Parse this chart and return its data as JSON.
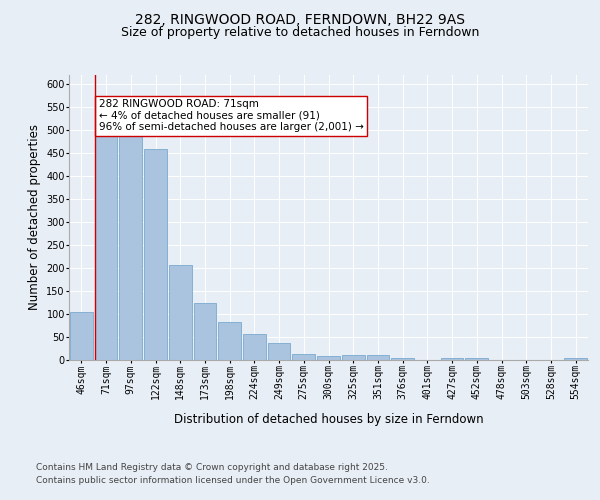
{
  "title_line1": "282, RINGWOOD ROAD, FERNDOWN, BH22 9AS",
  "title_line2": "Size of property relative to detached houses in Ferndown",
  "xlabel": "Distribution of detached houses by size in Ferndown",
  "ylabel": "Number of detached properties",
  "categories": [
    "46sqm",
    "71sqm",
    "97sqm",
    "122sqm",
    "148sqm",
    "173sqm",
    "198sqm",
    "224sqm",
    "249sqm",
    "275sqm",
    "300sqm",
    "325sqm",
    "351sqm",
    "376sqm",
    "401sqm",
    "427sqm",
    "452sqm",
    "478sqm",
    "503sqm",
    "528sqm",
    "554sqm"
  ],
  "values": [
    105,
    493,
    493,
    460,
    207,
    123,
    82,
    57,
    38,
    13,
    8,
    11,
    10,
    4,
    0,
    5,
    5,
    0,
    0,
    0,
    5
  ],
  "bar_color": "#aac4e0",
  "bar_edge_color": "#7aaace",
  "highlight_index": 1,
  "highlight_line_color": "#cc0000",
  "annotation_text": "282 RINGWOOD ROAD: 71sqm\n← 4% of detached houses are smaller (91)\n96% of semi-detached houses are larger (2,001) →",
  "annotation_box_color": "#ffffff",
  "annotation_box_edge": "#cc0000",
  "ylim": [
    0,
    620
  ],
  "yticks": [
    0,
    50,
    100,
    150,
    200,
    250,
    300,
    350,
    400,
    450,
    500,
    550,
    600
  ],
  "background_color": "#e8eef5",
  "plot_bg_color": "#e8eef5",
  "footer_line1": "Contains HM Land Registry data © Crown copyright and database right 2025.",
  "footer_line2": "Contains public sector information licensed under the Open Government Licence v3.0.",
  "title_fontsize": 10,
  "subtitle_fontsize": 9,
  "axis_label_fontsize": 8.5,
  "tick_fontsize": 7,
  "annotation_fontsize": 7.5,
  "footer_fontsize": 6.5
}
